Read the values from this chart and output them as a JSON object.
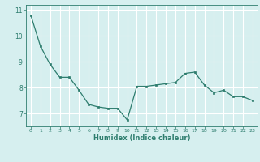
{
  "x": [
    0,
    1,
    2,
    3,
    4,
    5,
    6,
    7,
    8,
    9,
    10,
    11,
    12,
    13,
    14,
    15,
    16,
    17,
    18,
    19,
    20,
    21,
    22,
    23
  ],
  "y": [
    10.8,
    9.6,
    8.9,
    8.4,
    8.4,
    7.9,
    7.35,
    7.25,
    7.2,
    7.2,
    6.75,
    8.05,
    8.05,
    8.1,
    8.15,
    8.2,
    8.55,
    8.6,
    8.1,
    7.8,
    7.9,
    7.65,
    7.65,
    7.5
  ],
  "xlabel": "Humidex (Indice chaleur)",
  "ylim": [
    6.5,
    11.2
  ],
  "xlim": [
    -0.5,
    23.5
  ],
  "yticks": [
    7,
    8,
    9,
    10,
    11
  ],
  "xticks": [
    0,
    1,
    2,
    3,
    4,
    5,
    6,
    7,
    8,
    9,
    10,
    11,
    12,
    13,
    14,
    15,
    16,
    17,
    18,
    19,
    20,
    21,
    22,
    23
  ],
  "line_color": "#2e7d6e",
  "marker_color": "#2e7d6e",
  "bg_color": "#d6efef",
  "grid_color": "#ffffff",
  "axis_color": "#2e7d6e",
  "tick_color": "#2e7d6e",
  "label_color": "#2e7d6e"
}
